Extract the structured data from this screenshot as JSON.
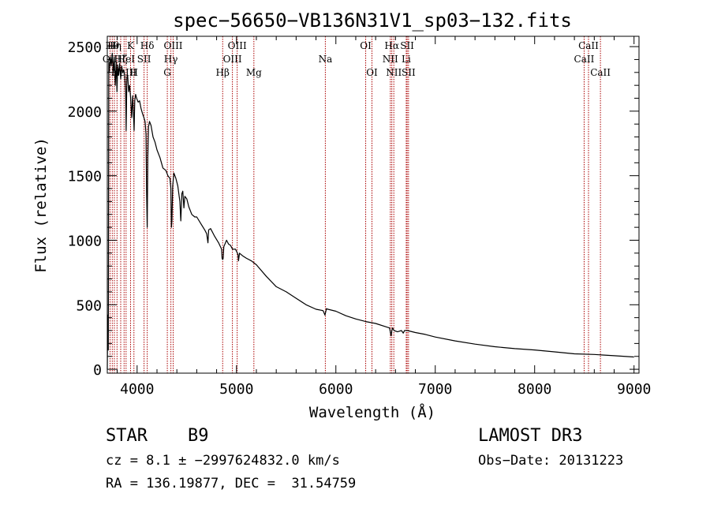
{
  "chart_data": {
    "type": "line",
    "title": "spec−56650−VB136N31V1_sp03−132.fits",
    "xlabel": "Wavelength (Å)",
    "ylabel": "Flux (relative)",
    "xlim": [
      3700,
      9050
    ],
    "ylim": [
      -30,
      2580
    ],
    "xticks": [
      4000,
      5000,
      6000,
      7000,
      8000,
      9000
    ],
    "xtick_labels": [
      "4000",
      "5000",
      "6000",
      "7000",
      "8000",
      "9000"
    ],
    "yticks": [
      0,
      500,
      1000,
      1500,
      2000,
      2500
    ],
    "ytick_labels": [
      "0",
      "500",
      "1000",
      "1500",
      "2000",
      "2500"
    ],
    "series": [
      {
        "name": "spectrum",
        "color": "#000000",
        "x": [
          3700,
          3705,
          3710,
          3715,
          3720,
          3730,
          3740,
          3750,
          3760,
          3770,
          3780,
          3790,
          3798,
          3805,
          3815,
          3825,
          3835,
          3845,
          3855,
          3865,
          3875,
          3885,
          3890,
          3897,
          3905,
          3915,
          3925,
          3935,
          3945,
          3955,
          3965,
          3970,
          3976,
          3985,
          3995,
          4010,
          4025,
          4040,
          4055,
          4068,
          4080,
          4090,
          4095,
          4102,
          4108,
          4115,
          4125,
          4140,
          4160,
          4180,
          4200,
          4230,
          4260,
          4290,
          4310,
          4330,
          4340,
          4345,
          4350,
          4358,
          4370,
          4390,
          4410,
          4430,
          4440,
          4450,
          4460,
          4471,
          4480,
          4500,
          4520,
          4550,
          4580,
          4600,
          4640,
          4680,
          4700,
          4713,
          4720,
          4740,
          4780,
          4820,
          4850,
          4855,
          4861,
          4866,
          4872,
          4900,
          4920,
          4940,
          4960,
          4990,
          5015,
          5020,
          5030,
          5060,
          5100,
          5150,
          5200,
          5300,
          5400,
          5500,
          5600,
          5700,
          5800,
          5870,
          5880,
          5890,
          5896,
          5905,
          5920,
          6000,
          6100,
          6200,
          6300,
          6400,
          6500,
          6540,
          6555,
          6563,
          6570,
          6585,
          6620,
          6660,
          6678,
          6690,
          6720,
          6800,
          6900,
          7000,
          7200,
          7400,
          7600,
          7800,
          8000,
          8200,
          8400,
          8600,
          8800,
          9000
        ],
        "y": [
          0,
          420,
          150,
          2380,
          2300,
          2420,
          2350,
          2450,
          2300,
          2420,
          2200,
          2380,
          2150,
          2360,
          2280,
          2370,
          2250,
          2350,
          2300,
          2320,
          2280,
          2150,
          1850,
          2260,
          2280,
          2150,
          2200,
          2100,
          1950,
          2120,
          1950,
          1850,
          2080,
          2130,
          2100,
          2070,
          2080,
          2020,
          1980,
          1950,
          1920,
          1820,
          1380,
          1100,
          1650,
          1880,
          1920,
          1890,
          1800,
          1760,
          1700,
          1640,
          1560,
          1540,
          1500,
          1480,
          1400,
          1100,
          1150,
          1420,
          1520,
          1480,
          1420,
          1300,
          1150,
          1360,
          1380,
          1250,
          1340,
          1320,
          1260,
          1200,
          1180,
          1180,
          1130,
          1080,
          1050,
          980,
          1080,
          1090,
          1030,
          980,
          930,
          860,
          850,
          860,
          950,
          1000,
          970,
          960,
          930,
          930,
          890,
          840,
          900,
          880,
          860,
          840,
          810,
          720,
          640,
          600,
          550,
          500,
          465,
          455,
          440,
          420,
          440,
          470,
          465,
          450,
          415,
          390,
          370,
          355,
          330,
          320,
          260,
          300,
          320,
          300,
          290,
          300,
          280,
          300,
          300,
          285,
          270,
          250,
          220,
          195,
          175,
          160,
          150,
          135,
          120,
          115,
          105,
          95
        ]
      }
    ],
    "line_markers": [
      {
        "wavelength": 3728,
        "label": "OII",
        "row": 2
      },
      {
        "wavelength": 3750,
        "label": "Hθ",
        "row": 1
      },
      {
        "wavelength": 3771,
        "label": "Hη",
        "row": 1
      },
      {
        "wavelength": 3798,
        "label": "Hι",
        "row": 3
      },
      {
        "wavelength": 3835,
        "label": "Hζ",
        "row": 2
      },
      {
        "wavelength": 3869,
        "label": "NeIII",
        "row": 3
      },
      {
        "wavelength": 3889,
        "label": "HeI",
        "row": 2
      },
      {
        "wavelength": 3934,
        "label": "K",
        "row": 1
      },
      {
        "wavelength": 3968,
        "label": "H",
        "row": 3
      },
      {
        "wavelength": 4070,
        "label": "SII",
        "row": 2
      },
      {
        "wavelength": 4102,
        "label": "Hδ",
        "row": 1
      },
      {
        "wavelength": 4304,
        "label": "G",
        "row": 3
      },
      {
        "wavelength": 4340,
        "label": "Hγ",
        "row": 2
      },
      {
        "wavelength": 4363,
        "label": "OIII",
        "row": 1
      },
      {
        "wavelength": 4861,
        "label": "Hβ",
        "row": 3
      },
      {
        "wavelength": 4959,
        "label": "OIII",
        "row": 2
      },
      {
        "wavelength": 5007,
        "label": "OIII",
        "row": 1
      },
      {
        "wavelength": 5175,
        "label": "Mg",
        "row": 3
      },
      {
        "wavelength": 5894,
        "label": "Na",
        "row": 2
      },
      {
        "wavelength": 6300,
        "label": "OI",
        "row": 1
      },
      {
        "wavelength": 6363,
        "label": "OI",
        "row": 3
      },
      {
        "wavelength": 6548,
        "label": "NII",
        "row": 2
      },
      {
        "wavelength": 6563,
        "label": "Hα",
        "row": 1
      },
      {
        "wavelength": 6583,
        "label": "NII",
        "row": 3
      },
      {
        "wavelength": 6708,
        "label": "Li",
        "row": 2
      },
      {
        "wavelength": 6717,
        "label": "SII",
        "row": 1
      },
      {
        "wavelength": 6731,
        "label": "SII",
        "row": 3
      },
      {
        "wavelength": 8498,
        "label": "CaII",
        "row": 2
      },
      {
        "wavelength": 8542,
        "label": "CaII",
        "row": 1
      },
      {
        "wavelength": 8662,
        "label": "CaII",
        "row": 3
      }
    ]
  },
  "info": {
    "star_type": "STAR",
    "subclass": "B9",
    "survey": "LAMOST DR3",
    "cz_line": "cz = 8.1 ± −2997624832.0 km/s",
    "obs_date": "Obs−Date: 20131223",
    "radec": "RA = 136.19877, DEC =  31.54759"
  },
  "colors": {
    "marker": "#aa0000",
    "axis": "#000000",
    "background": "#ffffff"
  }
}
